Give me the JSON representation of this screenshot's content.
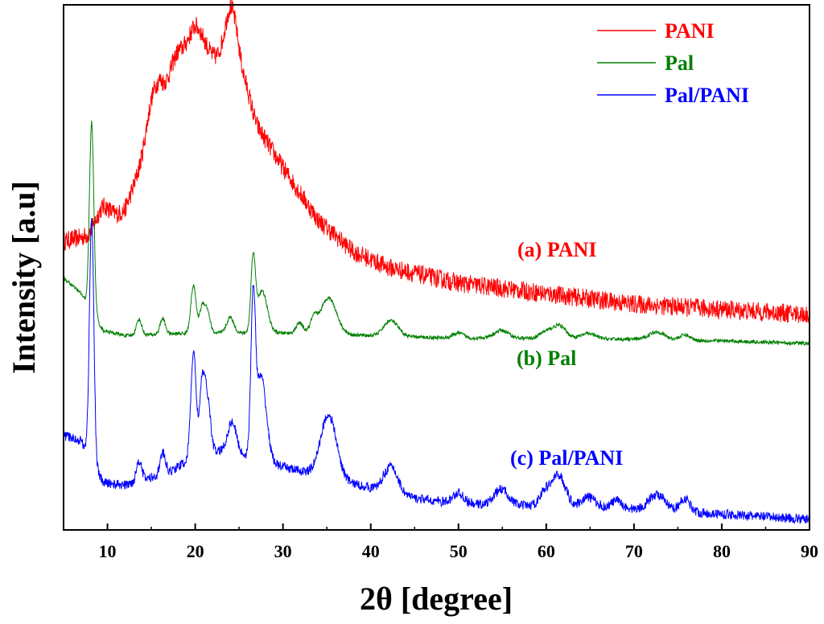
{
  "chart_data": {
    "type": "line",
    "title": "",
    "xlabel": "2θ [degree]",
    "ylabel": "Intensity [a.u]",
    "xlim": [
      5,
      90
    ],
    "ylim": [
      0,
      100
    ],
    "grid": false,
    "legend_position": "top-right",
    "x_ticks": [
      10,
      20,
      30,
      40,
      50,
      60,
      70,
      80,
      90
    ],
    "x_tick_labels": [
      "10",
      "20",
      "30",
      "40",
      "50",
      "60",
      "70",
      "80",
      "90"
    ],
    "series": [
      {
        "name": "PANI",
        "color": "#ff0000",
        "annotation": "(a) PANI",
        "noise": 1.8,
        "baseline": [
          [
            5,
            55
          ],
          [
            8,
            56
          ],
          [
            10,
            58
          ],
          [
            12,
            61
          ],
          [
            14,
            70
          ],
          [
            16,
            82
          ],
          [
            20,
            90
          ],
          [
            24,
            88
          ],
          [
            27,
            77
          ],
          [
            30,
            69
          ],
          [
            34,
            59
          ],
          [
            38,
            53
          ],
          [
            42,
            50
          ],
          [
            50,
            47
          ],
          [
            60,
            45
          ],
          [
            70,
            43
          ],
          [
            80,
            42
          ],
          [
            90,
            41
          ]
        ],
        "peaks": [
          {
            "x": 9.5,
            "h": 4,
            "w": 0.8
          },
          {
            "x": 15.2,
            "h": 6,
            "w": 0.8
          },
          {
            "x": 17.8,
            "h": 4,
            "w": 0.7
          },
          {
            "x": 20.0,
            "h": 6,
            "w": 1.1
          },
          {
            "x": 24.2,
            "h": 12,
            "w": 0.8
          },
          {
            "x": 26.0,
            "h": 2,
            "w": 0.5
          }
        ]
      },
      {
        "name": "Pal",
        "color": "#008000",
        "annotation": "(b) Pal",
        "noise": 0.35,
        "baseline": [
          [
            5,
            48
          ],
          [
            7,
            45
          ],
          [
            9.5,
            38
          ],
          [
            12,
            37
          ],
          [
            20,
            37.5
          ],
          [
            30,
            37.5
          ],
          [
            40,
            37
          ],
          [
            50,
            36.5
          ],
          [
            60,
            36.5
          ],
          [
            70,
            36.3
          ],
          [
            80,
            36
          ],
          [
            90,
            35.5
          ]
        ],
        "peaks": [
          {
            "x": 8.2,
            "h": 36,
            "w": 0.25
          },
          {
            "x": 13.6,
            "h": 3,
            "w": 0.3
          },
          {
            "x": 16.3,
            "h": 3,
            "w": 0.3
          },
          {
            "x": 19.8,
            "h": 9,
            "w": 0.3
          },
          {
            "x": 20.8,
            "h": 5,
            "w": 0.3
          },
          {
            "x": 21.4,
            "h": 4,
            "w": 0.3
          },
          {
            "x": 24.0,
            "h": 3,
            "w": 0.4
          },
          {
            "x": 26.6,
            "h": 13.5,
            "w": 0.25
          },
          {
            "x": 27.6,
            "h": 8,
            "w": 0.6
          },
          {
            "x": 31.9,
            "h": 2,
            "w": 0.4
          },
          {
            "x": 33.5,
            "h": 2.5,
            "w": 0.4
          },
          {
            "x": 35.2,
            "h": 7,
            "w": 0.9
          },
          {
            "x": 42.3,
            "h": 3,
            "w": 0.8
          },
          {
            "x": 50.0,
            "h": 1,
            "w": 0.6
          },
          {
            "x": 54.9,
            "h": 1.5,
            "w": 0.8
          },
          {
            "x": 59.8,
            "h": 1,
            "w": 0.6
          },
          {
            "x": 61.4,
            "h": 2.5,
            "w": 0.8
          },
          {
            "x": 64.8,
            "h": 1,
            "w": 0.8
          },
          {
            "x": 72.6,
            "h": 1.5,
            "w": 0.9
          },
          {
            "x": 75.8,
            "h": 1,
            "w": 0.6
          }
        ]
      },
      {
        "name": "Pal/PANI",
        "color": "#0000ff",
        "annotation": "(c) Pal/PANI",
        "noise": 0.9,
        "baseline": [
          [
            5,
            18
          ],
          [
            7,
            17
          ],
          [
            9.5,
            9
          ],
          [
            12,
            8.5
          ],
          [
            14,
            9.5
          ],
          [
            17,
            11
          ],
          [
            20,
            14
          ],
          [
            23,
            15
          ],
          [
            26,
            14
          ],
          [
            30,
            12
          ],
          [
            35,
            10
          ],
          [
            40,
            8
          ],
          [
            45,
            6
          ],
          [
            50,
            5
          ],
          [
            60,
            4.5
          ],
          [
            70,
            4
          ],
          [
            80,
            3
          ],
          [
            90,
            2
          ]
        ],
        "peaks": [
          {
            "x": 8.2,
            "h": 46,
            "w": 0.25
          },
          {
            "x": 13.6,
            "h": 4,
            "w": 0.3
          },
          {
            "x": 16.3,
            "h": 4,
            "w": 0.3
          },
          {
            "x": 19.8,
            "h": 20,
            "w": 0.3
          },
          {
            "x": 20.8,
            "h": 13,
            "w": 0.3
          },
          {
            "x": 21.4,
            "h": 10,
            "w": 0.35
          },
          {
            "x": 24.2,
            "h": 6,
            "w": 0.5
          },
          {
            "x": 26.6,
            "h": 28,
            "w": 0.25
          },
          {
            "x": 27.5,
            "h": 16,
            "w": 0.6
          },
          {
            "x": 35.2,
            "h": 12,
            "w": 0.9
          },
          {
            "x": 42.3,
            "h": 5,
            "w": 0.8
          },
          {
            "x": 50.0,
            "h": 2,
            "w": 0.6
          },
          {
            "x": 54.9,
            "h": 3,
            "w": 0.8
          },
          {
            "x": 59.8,
            "h": 2.5,
            "w": 0.6
          },
          {
            "x": 61.4,
            "h": 6,
            "w": 0.8
          },
          {
            "x": 64.8,
            "h": 2,
            "w": 0.8
          },
          {
            "x": 68.0,
            "h": 1.5,
            "w": 0.6
          },
          {
            "x": 72.6,
            "h": 3,
            "w": 0.9
          },
          {
            "x": 75.8,
            "h": 2.5,
            "w": 0.6
          }
        ]
      }
    ]
  }
}
